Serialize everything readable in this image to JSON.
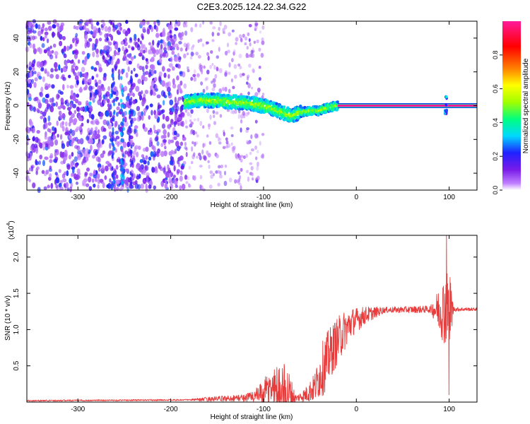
{
  "figure_title": "C2E3.2025.124.22.34.G22",
  "colors": {
    "snr_line": "#e83c3c",
    "background": "#ffffff",
    "colormap": [
      "#ffffff",
      "#7a1be8",
      "#2020ff",
      "#00d8ff",
      "#00ff80",
      "#a0ff00",
      "#ffff00",
      "#ff8000",
      "#ff0000",
      "#ff00a0"
    ]
  },
  "chart_data": [
    {
      "type": "heatmap",
      "title": "",
      "xlabel": "Height of straight line (km)",
      "ylabel": "Frequency (Hz)",
      "xlim": [
        -355,
        130
      ],
      "ylim": [
        -50,
        50
      ],
      "xticks": [
        {
          "value": -300,
          "label": "-300"
        },
        {
          "value": -200,
          "label": "-200"
        },
        {
          "value": -100,
          "label": "-100"
        },
        {
          "value": 0,
          "label": "0"
        },
        {
          "value": 100,
          "label": "100"
        }
      ],
      "yticks": [
        {
          "value": -40,
          "label": "-40"
        },
        {
          "value": -20,
          "label": "-20"
        },
        {
          "value": 0,
          "label": "0"
        },
        {
          "value": 20,
          "label": "20"
        },
        {
          "value": 40,
          "label": "40"
        }
      ],
      "colorbar": {
        "label": "Normalized spectral amplitude",
        "range": [
          0,
          1
        ],
        "ticks": [
          {
            "value": 0.0,
            "label": "0.0"
          },
          {
            "value": 0.2,
            "label": "0.2"
          },
          {
            "value": 0.4,
            "label": "0.4"
          },
          {
            "value": 0.6,
            "label": "0.6"
          },
          {
            "value": 0.8,
            "label": "0.8"
          }
        ]
      },
      "features": {
        "noise_region_x": [
          -355,
          -185
        ],
        "sparse_noise_x": [
          -185,
          -100
        ],
        "signal_trace": [
          {
            "x": -185,
            "f": 2
          },
          {
            "x": -170,
            "f": 3
          },
          {
            "x": -150,
            "f": 3
          },
          {
            "x": -130,
            "f": 2
          },
          {
            "x": -110,
            "f": 1
          },
          {
            "x": -95,
            "f": -1
          },
          {
            "x": -80,
            "f": -4
          },
          {
            "x": -70,
            "f": -6
          },
          {
            "x": -60,
            "f": -4
          },
          {
            "x": -50,
            "f": -3
          },
          {
            "x": -40,
            "f": -3
          },
          {
            "x": -30,
            "f": -1
          },
          {
            "x": -20,
            "f": 0
          },
          {
            "x": 0,
            "f": 0
          },
          {
            "x": 130,
            "f": 0
          }
        ]
      }
    },
    {
      "type": "line",
      "title": "",
      "xlabel": "Height of straight line (km)",
      "ylabel": "SNR (10 * v/v)",
      "yscale_label": "(x10",
      "yscale_exponent": "4",
      "yscale_suffix": ")",
      "xlim": [
        -355,
        130
      ],
      "ylim": [
        0,
        2.3
      ],
      "xticks": [
        {
          "value": -300,
          "label": "-300"
        },
        {
          "value": -200,
          "label": "-200"
        },
        {
          "value": -100,
          "label": "-100"
        },
        {
          "value": 0,
          "label": "0"
        },
        {
          "value": 100,
          "label": "100"
        }
      ],
      "yticks": [
        {
          "value": 0.5,
          "label": "0.5"
        },
        {
          "value": 1.0,
          "label": "1.0"
        },
        {
          "value": 1.5,
          "label": "1.5"
        },
        {
          "value": 2.0,
          "label": "2.0"
        }
      ],
      "series": [
        {
          "envelope": [
            {
              "x": -355,
              "base": 0.02,
              "amp": 0.01
            },
            {
              "x": -180,
              "base": 0.03,
              "amp": 0.01
            },
            {
              "x": -160,
              "base": 0.04,
              "amp": 0.03
            },
            {
              "x": -140,
              "base": 0.05,
              "amp": 0.04
            },
            {
              "x": -120,
              "base": 0.06,
              "amp": 0.05
            },
            {
              "x": -105,
              "base": 0.1,
              "amp": 0.12
            },
            {
              "x": -90,
              "base": 0.2,
              "amp": 0.3
            },
            {
              "x": -75,
              "base": 0.15,
              "amp": 0.4
            },
            {
              "x": -65,
              "base": 0.05,
              "amp": 0.04
            },
            {
              "x": -55,
              "base": 0.1,
              "amp": 0.1
            },
            {
              "x": -45,
              "base": 0.2,
              "amp": 0.2
            },
            {
              "x": -35,
              "base": 0.5,
              "amp": 0.4
            },
            {
              "x": -25,
              "base": 0.75,
              "amp": 0.35
            },
            {
              "x": -15,
              "base": 0.95,
              "amp": 0.3
            },
            {
              "x": -5,
              "base": 1.1,
              "amp": 0.2
            },
            {
              "x": 10,
              "base": 1.2,
              "amp": 0.12
            },
            {
              "x": 30,
              "base": 1.27,
              "amp": 0.04
            },
            {
              "x": 80,
              "base": 1.28,
              "amp": 0.05
            },
            {
              "x": 85,
              "base": 1.28,
              "amp": 0.18
            },
            {
              "x": 95,
              "base": 1.28,
              "amp": 0.5
            },
            {
              "x": 100,
              "base": 1.28,
              "amp": 0.6
            },
            {
              "x": 105,
              "base": 1.28,
              "amp": 0.03
            },
            {
              "x": 130,
              "base": 1.28,
              "amp": 0.02
            }
          ]
        }
      ]
    }
  ]
}
